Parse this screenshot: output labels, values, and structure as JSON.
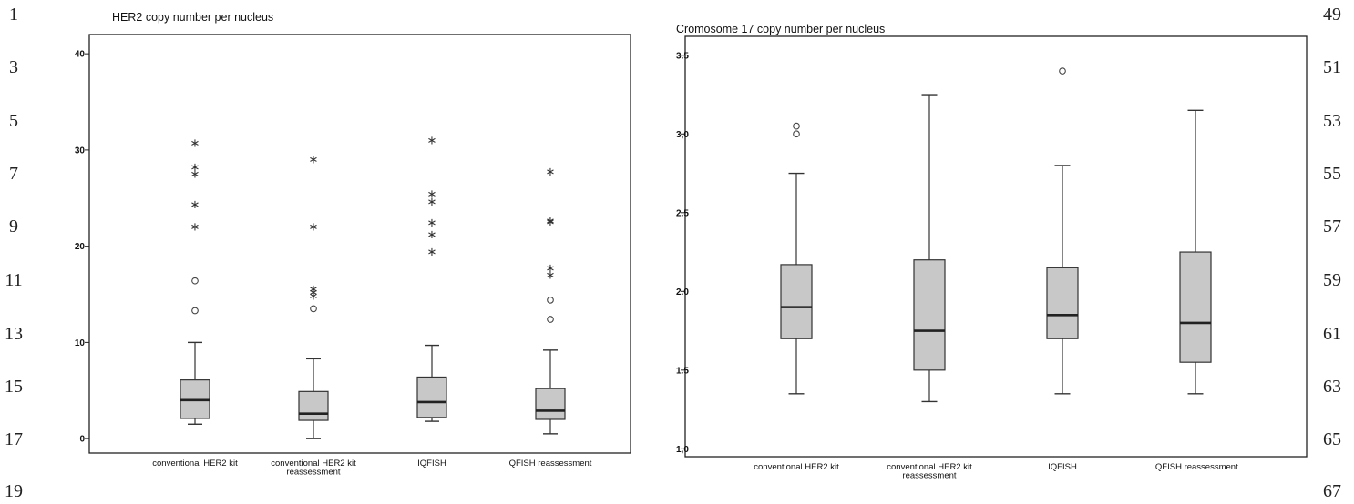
{
  "line_numbers": {
    "left": [
      "1",
      "3",
      "5",
      "7",
      "9",
      "11",
      "13",
      "15",
      "17",
      "19"
    ],
    "right": [
      "49",
      "51",
      "53",
      "55",
      "57",
      "59",
      "61",
      "63",
      "65",
      "67"
    ]
  },
  "colors": {
    "box_fill": "#c8c8c8",
    "stroke": "#333333",
    "median": "#222222"
  },
  "chart_data": [
    {
      "type": "boxplot",
      "title": "HER2 copy number per nucleus",
      "xlabel": "",
      "ylabel": "",
      "ylim": [
        -1.5,
        42
      ],
      "yticks": [
        0,
        10,
        20,
        30,
        40
      ],
      "grid": false,
      "categories": [
        [
          "conventional HER2 kit"
        ],
        [
          "conventional HER2 kit",
          "reassessment"
        ],
        [
          "IQFISH"
        ],
        [
          "QFISH reassessment"
        ]
      ],
      "boxes": [
        {
          "whisker_low": 1.5,
          "q1": 2.1,
          "median": 4.0,
          "q3": 6.1,
          "whisker_high": 10.0,
          "outliers": [
            13.3,
            16.4
          ],
          "extremes": [
            22.1,
            24.4,
            27.6,
            28.3,
            30.8
          ]
        },
        {
          "whisker_low": 0.0,
          "q1": 1.9,
          "median": 2.6,
          "q3": 4.9,
          "whisker_high": 8.3,
          "outliers": [
            13.5
          ],
          "extremes": [
            14.9,
            15.3,
            15.6,
            22.1,
            29.1
          ]
        },
        {
          "whisker_low": 1.8,
          "q1": 2.2,
          "median": 3.8,
          "q3": 6.4,
          "whisker_high": 9.7,
          "outliers": [],
          "extremes": [
            19.5,
            21.3,
            22.5,
            24.7,
            25.5,
            31.1
          ]
        },
        {
          "whisker_low": 0.5,
          "q1": 2.0,
          "median": 2.9,
          "q3": 5.2,
          "whisker_high": 9.2,
          "outliers": [
            12.4,
            14.4
          ],
          "extremes": [
            17.1,
            17.8,
            22.6,
            22.7,
            27.8
          ]
        }
      ]
    },
    {
      "type": "boxplot",
      "title": "Cromosome 17 copy number per nucleus",
      "xlabel": "",
      "ylabel": "",
      "ylim": [
        0.95,
        3.62
      ],
      "yticks": [
        "1,0",
        "1.5",
        "2.0",
        "2.5",
        "3,0",
        "3.5"
      ],
      "yticks_values": [
        1.0,
        1.5,
        2.0,
        2.5,
        3.0,
        3.5
      ],
      "grid": false,
      "categories": [
        [
          "conventional HER2 kit"
        ],
        [
          "conventional HER2 kit",
          "reassessment"
        ],
        [
          "IQFISH"
        ],
        [
          "IQFISH reassessment"
        ]
      ],
      "boxes": [
        {
          "whisker_low": 1.35,
          "q1": 1.7,
          "median": 1.9,
          "q3": 2.17,
          "whisker_high": 2.75,
          "outliers": [
            3.0,
            3.05
          ],
          "extremes": []
        },
        {
          "whisker_low": 1.3,
          "q1": 1.5,
          "median": 1.75,
          "q3": 2.2,
          "whisker_high": 3.25,
          "outliers": [],
          "extremes": []
        },
        {
          "whisker_low": 1.35,
          "q1": 1.7,
          "median": 1.85,
          "q3": 2.15,
          "whisker_high": 2.8,
          "outliers": [
            3.4
          ],
          "extremes": []
        },
        {
          "whisker_low": 1.35,
          "q1": 1.55,
          "median": 1.8,
          "q3": 2.25,
          "whisker_high": 3.15,
          "outliers": [],
          "extremes": []
        }
      ]
    }
  ]
}
